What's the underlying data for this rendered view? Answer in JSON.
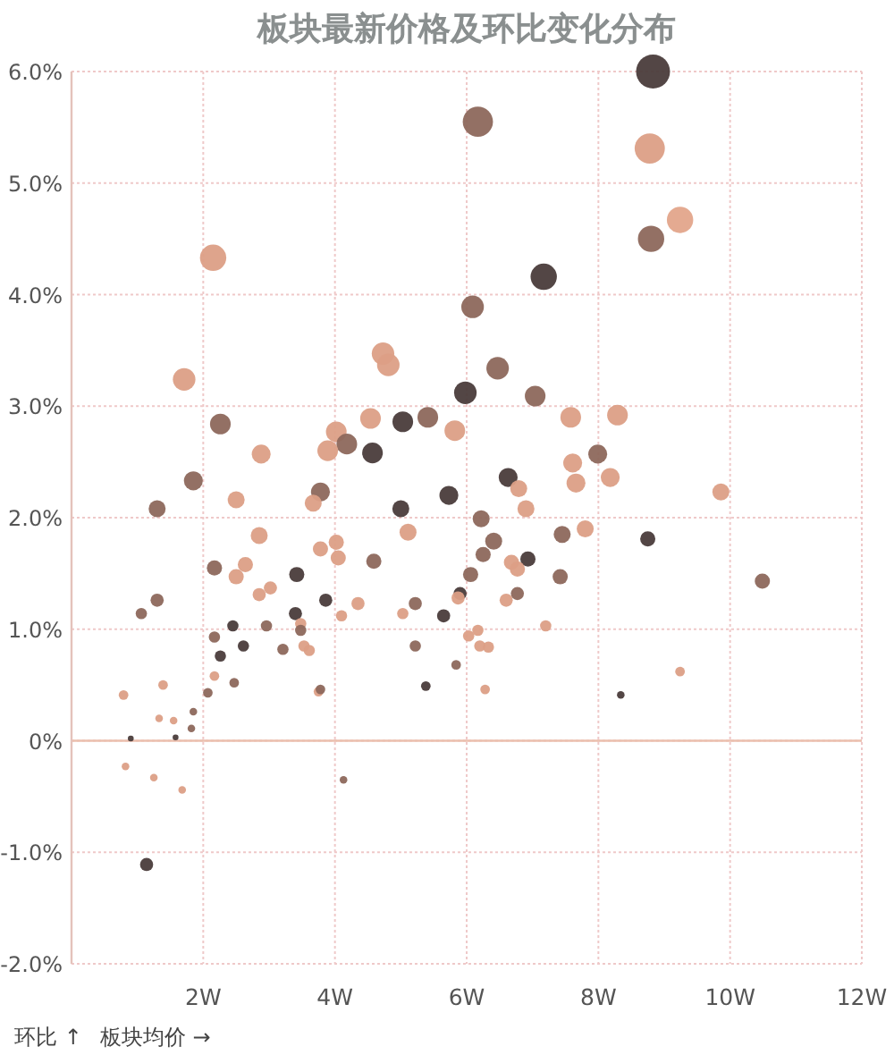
{
  "chart_data": {
    "type": "bubble",
    "title": "板块最新价格及环比变化分布",
    "xlabel": "板块均价 →",
    "ylabel": "环比 ↑",
    "xlim": [
      0,
      12
    ],
    "ylim": [
      -2,
      6
    ],
    "xticks": [
      {
        "value": 2,
        "label": "2W"
      },
      {
        "value": 4,
        "label": "4W"
      },
      {
        "value": 6,
        "label": "6W"
      },
      {
        "value": 8,
        "label": "8W"
      },
      {
        "value": 10,
        "label": "10W"
      },
      {
        "value": 12,
        "label": "12W"
      }
    ],
    "yticks": [
      {
        "value": -2,
        "label": "-2.0%"
      },
      {
        "value": -1,
        "label": "-1.0%"
      },
      {
        "value": 0,
        "label": "0%"
      },
      {
        "value": 1,
        "label": "1.0%"
      },
      {
        "value": 2,
        "label": "2.0%"
      },
      {
        "value": 3,
        "label": "3.0%"
      },
      {
        "value": 4,
        "label": "4.0%"
      },
      {
        "value": 5,
        "label": "5.0%"
      },
      {
        "value": 6,
        "label": "6.0%"
      }
    ],
    "grid": true,
    "marker": "circle",
    "ref_lines": [
      {
        "axis": "y",
        "value": 0,
        "color": "#ebbfae",
        "line_style": "solid"
      }
    ],
    "series": [
      {
        "x": [
          8.83,
          6.17,
          8.78,
          9.24,
          8.8,
          2.15,
          7.17,
          6.09,
          4.73,
          4.81,
          6.47,
          1.71,
          2.26,
          5.98,
          4.54,
          5.03,
          5.41,
          5.82,
          4.02,
          4.18,
          3.89,
          4.57,
          2.88,
          1.85,
          3.78,
          3.67,
          2.5,
          1.3,
          5.73,
          5.0,
          6.22,
          6.41,
          6.25,
          5.11,
          2.85,
          4.02,
          3.78,
          4.05,
          4.59,
          2.17,
          2.64,
          2.5,
          3.42,
          6.06,
          3.02,
          2.85,
          3.86,
          4.35,
          5.22,
          5.9,
          5.87,
          1.3,
          1.06,
          3.4,
          4.1,
          5.03,
          5.65,
          3.48,
          3.48,
          2.96,
          2.45,
          2.17,
          6.03,
          6.17,
          2.61,
          3.53,
          3.61,
          3.21,
          5.22,
          2.26,
          6.2,
          6.33,
          5.84,
          2.17,
          2.47,
          1.39,
          5.38,
          3.75,
          3.78,
          6.28,
          0.79,
          2.07,
          1.85,
          1.33,
          1.55,
          1.82,
          0.9,
          1.58,
          0.82,
          1.25,
          1.68,
          4.13,
          1.14,
          7.04,
          7.58,
          8.29,
          7.99,
          7.61,
          7.66,
          8.18,
          6.63,
          6.79,
          6.9,
          9.86,
          7.45,
          7.8,
          8.75,
          6.93,
          6.68,
          6.77,
          7.42,
          10.49,
          6.77,
          6.6,
          7.2,
          9.24,
          8.34
        ],
        "values": [
          6.0,
          5.55,
          5.31,
          4.67,
          4.5,
          4.33,
          4.16,
          3.89,
          3.47,
          3.37,
          3.34,
          3.24,
          2.84,
          3.12,
          2.89,
          2.86,
          2.9,
          2.78,
          2.77,
          2.66,
          2.6,
          2.58,
          2.57,
          2.33,
          2.23,
          2.13,
          2.16,
          2.08,
          2.2,
          2.08,
          1.99,
          1.79,
          1.67,
          1.87,
          1.84,
          1.78,
          1.72,
          1.64,
          1.61,
          1.55,
          1.58,
          1.47,
          1.49,
          1.49,
          1.37,
          1.31,
          1.26,
          1.23,
          1.23,
          1.32,
          1.28,
          1.26,
          1.14,
          1.14,
          1.12,
          1.14,
          1.12,
          1.05,
          0.99,
          1.03,
          1.03,
          0.93,
          0.94,
          0.99,
          0.85,
          0.85,
          0.81,
          0.82,
          0.85,
          0.76,
          0.85,
          0.84,
          0.68,
          0.58,
          0.52,
          0.5,
          0.49,
          0.44,
          0.46,
          0.46,
          0.41,
          0.43,
          0.26,
          0.2,
          0.18,
          0.11,
          0.02,
          0.03,
          -0.23,
          -0.33,
          -0.44,
          -0.35,
          -1.11,
          3.09,
          2.9,
          2.92,
          2.57,
          2.49,
          2.31,
          2.36,
          2.36,
          2.26,
          2.08,
          2.23,
          1.85,
          1.9,
          1.81,
          1.63,
          1.6,
          1.54,
          1.47,
          1.43,
          1.32,
          1.26,
          1.03,
          0.62,
          0.41
        ],
        "sizes": [
          1,
          0.79,
          0.79,
          0.6,
          0.6,
          0.6,
          0.6,
          0.44,
          0.44,
          0.44,
          0.44,
          0.44,
          0.37,
          0.44,
          0.37,
          0.37,
          0.37,
          0.37,
          0.37,
          0.37,
          0.37,
          0.37,
          0.31,
          0.31,
          0.31,
          0.25,
          0.25,
          0.25,
          0.31,
          0.25,
          0.25,
          0.25,
          0.2,
          0.25,
          0.25,
          0.2,
          0.2,
          0.2,
          0.2,
          0.2,
          0.2,
          0.2,
          0.2,
          0.2,
          0.15,
          0.15,
          0.15,
          0.15,
          0.15,
          0.15,
          0.15,
          0.15,
          0.11,
          0.15,
          0.11,
          0.11,
          0.15,
          0.11,
          0.11,
          0.11,
          0.11,
          0.11,
          0.11,
          0.11,
          0.11,
          0.11,
          0.11,
          0.11,
          0.11,
          0.11,
          0.11,
          0.11,
          0.08,
          0.08,
          0.08,
          0.08,
          0.08,
          0.08,
          0.08,
          0.08,
          0.08,
          0.08,
          0.05,
          0.05,
          0.05,
          0.05,
          0.03,
          0.03,
          0.05,
          0.05,
          0.05,
          0.05,
          0.15,
          0.37,
          0.37,
          0.37,
          0.31,
          0.31,
          0.31,
          0.31,
          0.31,
          0.25,
          0.25,
          0.25,
          0.25,
          0.25,
          0.2,
          0.2,
          0.2,
          0.2,
          0.2,
          0.2,
          0.15,
          0.15,
          0.11,
          0.08,
          0.05
        ],
        "colors": [
          "#4a3c3b",
          "#8d685c",
          "#dc9f86",
          "#e3a58b",
          "#8d685c",
          "#dc9f86",
          "#4a3c3b",
          "#8d685c",
          "#dc9f86",
          "#dc9f86",
          "#8d685c",
          "#dc9f86",
          "#8d685c",
          "#4a3c3b",
          "#dc9f86",
          "#4a3c3b",
          "#8d685c",
          "#dc9f86",
          "#dc9f86",
          "#8d685c",
          "#dc9f86",
          "#4a3c3b",
          "#dc9f86",
          "#8d685c",
          "#8d685c",
          "#dc9f86",
          "#dc9f86",
          "#8d685c",
          "#4a3c3b",
          "#4a3c3b",
          "#8d685c",
          "#8d685c",
          "#8d685c",
          "#dc9f86",
          "#dc9f86",
          "#dc9f86",
          "#dc9f86",
          "#dc9f86",
          "#8d685c",
          "#8d685c",
          "#dc9f86",
          "#dc9f86",
          "#4a3c3b",
          "#8d685c",
          "#dc9f86",
          "#dc9f86",
          "#4a3c3b",
          "#dc9f86",
          "#8d685c",
          "#4a3c3b",
          "#dc9f86",
          "#8d685c",
          "#8d685c",
          "#4a3c3b",
          "#dc9f86",
          "#dc9f86",
          "#4a3c3b",
          "#dc9f86",
          "#8d685c",
          "#8d685c",
          "#4a3c3b",
          "#8d685c",
          "#dc9f86",
          "#dc9f86",
          "#4a3c3b",
          "#dc9f86",
          "#dc9f86",
          "#8d685c",
          "#8d685c",
          "#4a3c3b",
          "#dc9f86",
          "#dc9f86",
          "#8d685c",
          "#dc9f86",
          "#8d685c",
          "#dc9f86",
          "#4a3c3b",
          "#dc9f86",
          "#8d685c",
          "#dc9f86",
          "#dc9f86",
          "#8d685c",
          "#8d685c",
          "#dc9f86",
          "#dc9f86",
          "#8d685c",
          "#4a3c3b",
          "#4a3c3b",
          "#dc9f86",
          "#dc9f86",
          "#dc9f86",
          "#8d685c",
          "#4a3c3b",
          "#8d685c",
          "#dc9f86",
          "#dc9f86",
          "#8d685c",
          "#dc9f86",
          "#dc9f86",
          "#dc9f86",
          "#4a3c3b",
          "#dc9f86",
          "#dc9f86",
          "#dc9f86",
          "#8d685c",
          "#dc9f86",
          "#4a3c3b",
          "#4a3c3b",
          "#dc9f86",
          "#dc9f86",
          "#8d685c",
          "#8d685c",
          "#8d685c",
          "#dc9f86",
          "#dc9f86",
          "#dc9f86",
          "#4a3c3b"
        ]
      }
    ]
  }
}
